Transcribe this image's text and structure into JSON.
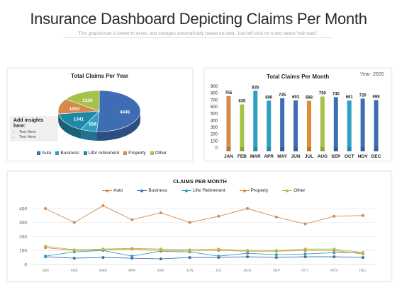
{
  "header": {
    "title": "Insurance Dashboard Depicting Claims Per Month",
    "subtitle": "This graph/chart is linked to excel, and changes automatically  based on data. Just left click on it and select “edit data”."
  },
  "insights": {
    "heading": "Add insights here:",
    "items": [
      "Text Here",
      "Text Here"
    ]
  },
  "year_label": "Year: 2020",
  "colors": {
    "auto": "#d48a4c",
    "business": "#3f6db3",
    "life": "#2f9fc4",
    "property": "#e08b3a",
    "other": "#a6c24a"
  },
  "chart_data": [
    {
      "type": "pie",
      "title": "Total Claims Per Year",
      "categories": [
        "Auto",
        "Business",
        "Life/ retirement",
        "Property",
        "Other"
      ],
      "values": [
        4445,
        556,
        1341,
        1053,
        1326
      ],
      "legend": "bottom"
    },
    {
      "type": "bar",
      "title": "Total Claims Per Month",
      "categories": [
        "JAN",
        "FEB",
        "MAR",
        "APR",
        "MAY",
        "JUN",
        "JUL",
        "AUG",
        "SEP",
        "OCT",
        "NOV",
        "DEC"
      ],
      "values": [
        755,
        635,
        835,
        690,
        725,
        693,
        688,
        750,
        740,
        691,
        720,
        698
      ],
      "bar_series": [
        "auto",
        "other",
        "life",
        "life",
        "business",
        "business",
        "property",
        "other",
        "business",
        "life",
        "business",
        "business"
      ],
      "ylim": [
        0,
        900
      ],
      "yticks": [
        0,
        100,
        200,
        300,
        400,
        500,
        600,
        700,
        800,
        900
      ],
      "grid": false
    },
    {
      "type": "line",
      "title": "CLAIMS PER MONTH",
      "categories": [
        "JAN",
        "FEB",
        "MAR",
        "APR",
        "MAY",
        "JUN",
        "JUL",
        "AUG",
        "SEP",
        "OCT",
        "NOV",
        "DEC"
      ],
      "series": [
        {
          "name": "Auto",
          "key": "auto",
          "values": [
            400,
            300,
            420,
            320,
            370,
            300,
            345,
            400,
            340,
            290,
            345,
            350
          ]
        },
        {
          "name": "Business",
          "key": "business",
          "values": [
            55,
            45,
            50,
            45,
            40,
            50,
            50,
            55,
            50,
            55,
            55,
            50
          ]
        },
        {
          "name": "Life/ Retirement",
          "key": "life",
          "values": [
            60,
            90,
            100,
            60,
            95,
            90,
            60,
            80,
            70,
            75,
            85,
            85
          ]
        },
        {
          "name": "Property",
          "key": "property",
          "values": [
            120,
            100,
            105,
            110,
            100,
            100,
            100,
            95,
            95,
            100,
            100,
            75
          ]
        },
        {
          "name": "Other",
          "key": "other",
          "values": [
            130,
            105,
            110,
            115,
            110,
            105,
            110,
            100,
            100,
            110,
            110,
            85
          ]
        }
      ],
      "ylim": [
        0,
        450
      ],
      "yticks": [
        0,
        100,
        200,
        300,
        400
      ],
      "grid": true,
      "legend": "top"
    }
  ]
}
